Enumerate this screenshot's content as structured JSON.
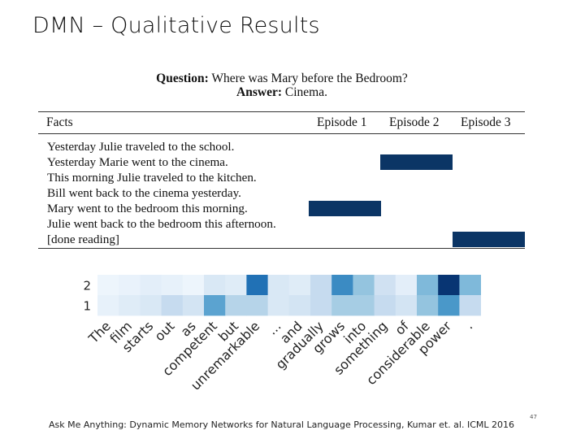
{
  "slide": {
    "title": "DMN – Qualitative Results",
    "footer": "Ask Me Anything: Dynamic Memory Networks for Natural Language Processing, Kumar et. al. ICML 2016",
    "page_number": "47"
  },
  "qa": {
    "question_label": "Question:",
    "question_text": "Where was Mary before the Bedroom?",
    "answer_label": "Answer:",
    "answer_text": "Cinema."
  },
  "table": {
    "facts_header": "Facts",
    "episode_headers": [
      "Episode 1",
      "Episode 2",
      "Episode 3"
    ],
    "facts": [
      "Yesterday Julie traveled to the school.",
      "Yesterday Marie went to the cinema.",
      "This morning Julie traveled to the kitchen.",
      "Bill went back to the cinema yesterday.",
      "Mary went to the bedroom this morning.",
      "Julie went back to the bedroom this afternoon.",
      "[done reading]"
    ],
    "attention": [
      {
        "episode": 1,
        "fact_index": 4
      },
      {
        "episode": 2,
        "fact_index": 1
      },
      {
        "episode": 3,
        "fact_index": 6
      }
    ],
    "bar_color": "#0b3565"
  },
  "chart_data": {
    "type": "heatmap",
    "x": [
      "The",
      "film",
      "starts",
      "out",
      "as",
      "competent",
      "but",
      "unremarkable",
      "...",
      "and",
      "gradually",
      "grows",
      "into",
      "something",
      "of",
      "considerable",
      "power",
      "."
    ],
    "y": [
      "2",
      "1"
    ],
    "values": [
      [
        0.05,
        0.07,
        0.1,
        0.08,
        0.05,
        0.15,
        0.12,
        0.75,
        0.15,
        0.12,
        0.25,
        0.65,
        0.4,
        0.2,
        0.1,
        0.45,
        0.98,
        0.45
      ],
      [
        0.08,
        0.12,
        0.15,
        0.25,
        0.18,
        0.55,
        0.3,
        0.3,
        0.15,
        0.18,
        0.25,
        0.35,
        0.35,
        0.25,
        0.18,
        0.4,
        0.6,
        0.25
      ]
    ],
    "colormap": "Blues"
  }
}
